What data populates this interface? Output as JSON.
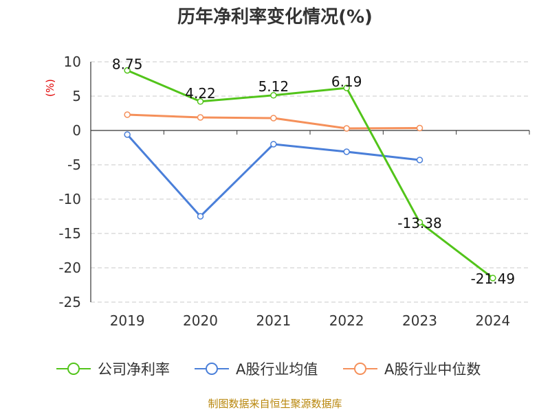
{
  "chart_data": {
    "type": "line",
    "title": "历年净利率变化情况(%)",
    "ylabel": "(%)",
    "categories": [
      "2019",
      "2020",
      "2021",
      "2022",
      "2023",
      "2024"
    ],
    "ylim": [
      -25,
      10
    ],
    "yticks": [
      10,
      5,
      0,
      -5,
      -10,
      -15,
      -20,
      -25
    ],
    "grid": true,
    "legend_position": "bottom",
    "series": [
      {
        "name": "公司净利率",
        "color": "#52c41a",
        "show_labels": true,
        "values": [
          8.75,
          4.22,
          5.12,
          6.19,
          -13.38,
          -21.49
        ],
        "labels": [
          "8.75",
          "4.22",
          "5.12",
          "6.19",
          "-13.38",
          "-21.49"
        ]
      },
      {
        "name": "A股行业均值",
        "color": "#4a7fd9",
        "show_labels": false,
        "values": [
          -0.6,
          -12.5,
          -2.0,
          -3.1,
          -4.3,
          null
        ]
      },
      {
        "name": "A股行业中位数",
        "color": "#f5905a",
        "show_labels": false,
        "values": [
          2.3,
          1.9,
          1.8,
          0.3,
          0.35,
          null
        ]
      }
    ]
  },
  "source": "制图数据来自恒生聚源数据库"
}
